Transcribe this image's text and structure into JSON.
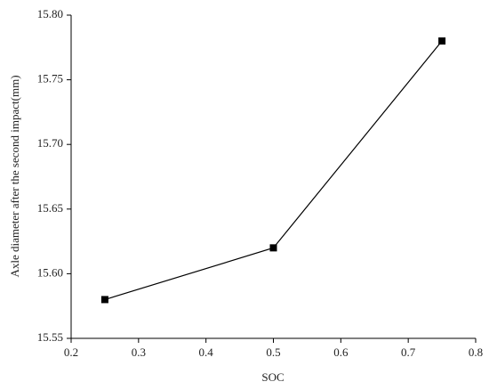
{
  "chart_data": {
    "type": "line",
    "x_label": "SOC",
    "y_label": "Axle diameter after the second impact(mm)",
    "x": [
      0.25,
      0.5,
      0.75
    ],
    "series": [
      {
        "name": "Axle diameter",
        "color": "#000000",
        "values": [
          15.58,
          15.62,
          15.78
        ]
      }
    ],
    "xlim": [
      0.2,
      0.8
    ],
    "xticks": [
      0.2,
      0.3,
      0.4,
      0.5,
      0.6,
      0.7,
      0.8
    ],
    "ylim": [
      15.55,
      15.8
    ],
    "yticks": [
      15.55,
      {
        "value": 15.6,
        "label": "15.60"
      },
      15.65,
      {
        "value": 15.7,
        "label": "15.70"
      },
      15.75,
      {
        "value": 15.8,
        "label": "15.80"
      }
    ],
    "grid": false
  }
}
